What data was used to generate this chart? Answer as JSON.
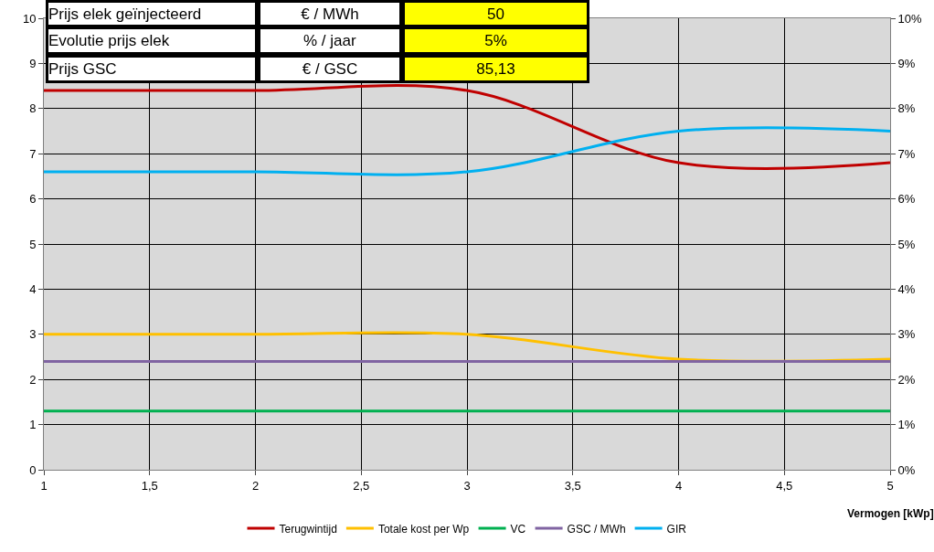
{
  "chart_data": {
    "type": "line",
    "xlabel": "Vermogen [kWp]",
    "x": [
      1,
      2,
      3,
      4,
      5
    ],
    "series": [
      {
        "name": "Terugwintijd",
        "color": "#c00000",
        "values": [
          8.4,
          8.4,
          8.4,
          6.8,
          6.8
        ]
      },
      {
        "name": "Totale kost per Wp",
        "color": "#ffc000",
        "values": [
          3,
          3,
          3,
          2.45,
          2.45
        ]
      },
      {
        "name": "VC",
        "color": "#00b050",
        "values": [
          1.3,
          1.3,
          1.3,
          1.3,
          1.3
        ]
      },
      {
        "name": "GSC / MWh",
        "color": "#8064a2",
        "values": [
          2.4,
          2.4,
          2.4,
          2.4,
          2.4
        ]
      },
      {
        "name": "GIR",
        "color": "#00b0f0",
        "values": [
          6.6,
          6.6,
          6.6,
          7.5,
          7.5
        ]
      }
    ],
    "xlim": [
      1,
      5
    ],
    "xticks": [
      1,
      {
        "value": 1.5,
        "label": "1,5"
      },
      2,
      {
        "value": 2.5,
        "label": "2,5"
      },
      3,
      {
        "value": 3.5,
        "label": "3,5"
      },
      4,
      {
        "value": 4.5,
        "label": "4,5"
      },
      5
    ],
    "ylim": [
      0,
      10
    ],
    "yticks": [
      0,
      1,
      2,
      3,
      4,
      5,
      6,
      7,
      8,
      9,
      10
    ],
    "y2lim": [
      0,
      10
    ],
    "y2ticks": [
      {
        "value": 0,
        "label": "0%"
      },
      {
        "value": 1,
        "label": "1%"
      },
      {
        "value": 2,
        "label": "2%"
      },
      {
        "value": 3,
        "label": "3%"
      },
      {
        "value": 4,
        "label": "4%"
      },
      {
        "value": 5,
        "label": "5%"
      },
      {
        "value": 6,
        "label": "6%"
      },
      {
        "value": 7,
        "label": "7%"
      },
      {
        "value": 8,
        "label": "8%"
      },
      {
        "value": 9,
        "label": "9%"
      },
      {
        "value": 10,
        "label": "10%"
      }
    ],
    "annotations": [
      "Prijs elek geïnjecteerd",
      "€ / MWh",
      "50",
      "Evolutie prijs elek",
      "% / jaar",
      "5%",
      "Prijs GSC",
      "€ / GSC",
      "85,13"
    ],
    "grid": true,
    "legend": "bottom",
    "marker": "none",
    "line_style": "solid"
  }
}
